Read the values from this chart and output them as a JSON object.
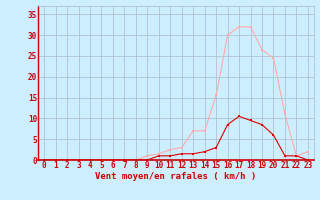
{
  "x": [
    0,
    1,
    2,
    3,
    4,
    5,
    6,
    7,
    8,
    9,
    10,
    11,
    12,
    13,
    14,
    15,
    16,
    17,
    18,
    19,
    20,
    21,
    22,
    23
  ],
  "y_moyen": [
    0,
    0,
    0,
    0,
    0,
    0,
    0,
    0,
    0,
    0,
    1,
    1,
    1.5,
    1.5,
    2,
    3,
    8.5,
    10.5,
    9.5,
    8.5,
    6,
    1,
    1,
    0
  ],
  "y_rafales": [
    0,
    0,
    0,
    0,
    0,
    0,
    0,
    0,
    0,
    1,
    1.5,
    2.5,
    3,
    7,
    7,
    15.5,
    30,
    32,
    32,
    26.5,
    24.5,
    11,
    1,
    2
  ],
  "color_moyen": "#dd0000",
  "color_rafales": "#ffaaaa",
  "background_color": "#cceeff",
  "grid_color": "#aabbcc",
  "xlabel": "Vent moyen/en rafales ( km/h )",
  "ylim": [
    0,
    37
  ],
  "xlim": [
    -0.5,
    23.5
  ],
  "yticks": [
    0,
    5,
    10,
    15,
    20,
    25,
    30,
    35
  ],
  "xticks": [
    0,
    1,
    2,
    3,
    4,
    5,
    6,
    7,
    8,
    9,
    10,
    11,
    12,
    13,
    14,
    15,
    16,
    17,
    18,
    19,
    20,
    21,
    22,
    23
  ],
  "tick_fontsize": 5.5,
  "label_fontsize": 6.5
}
